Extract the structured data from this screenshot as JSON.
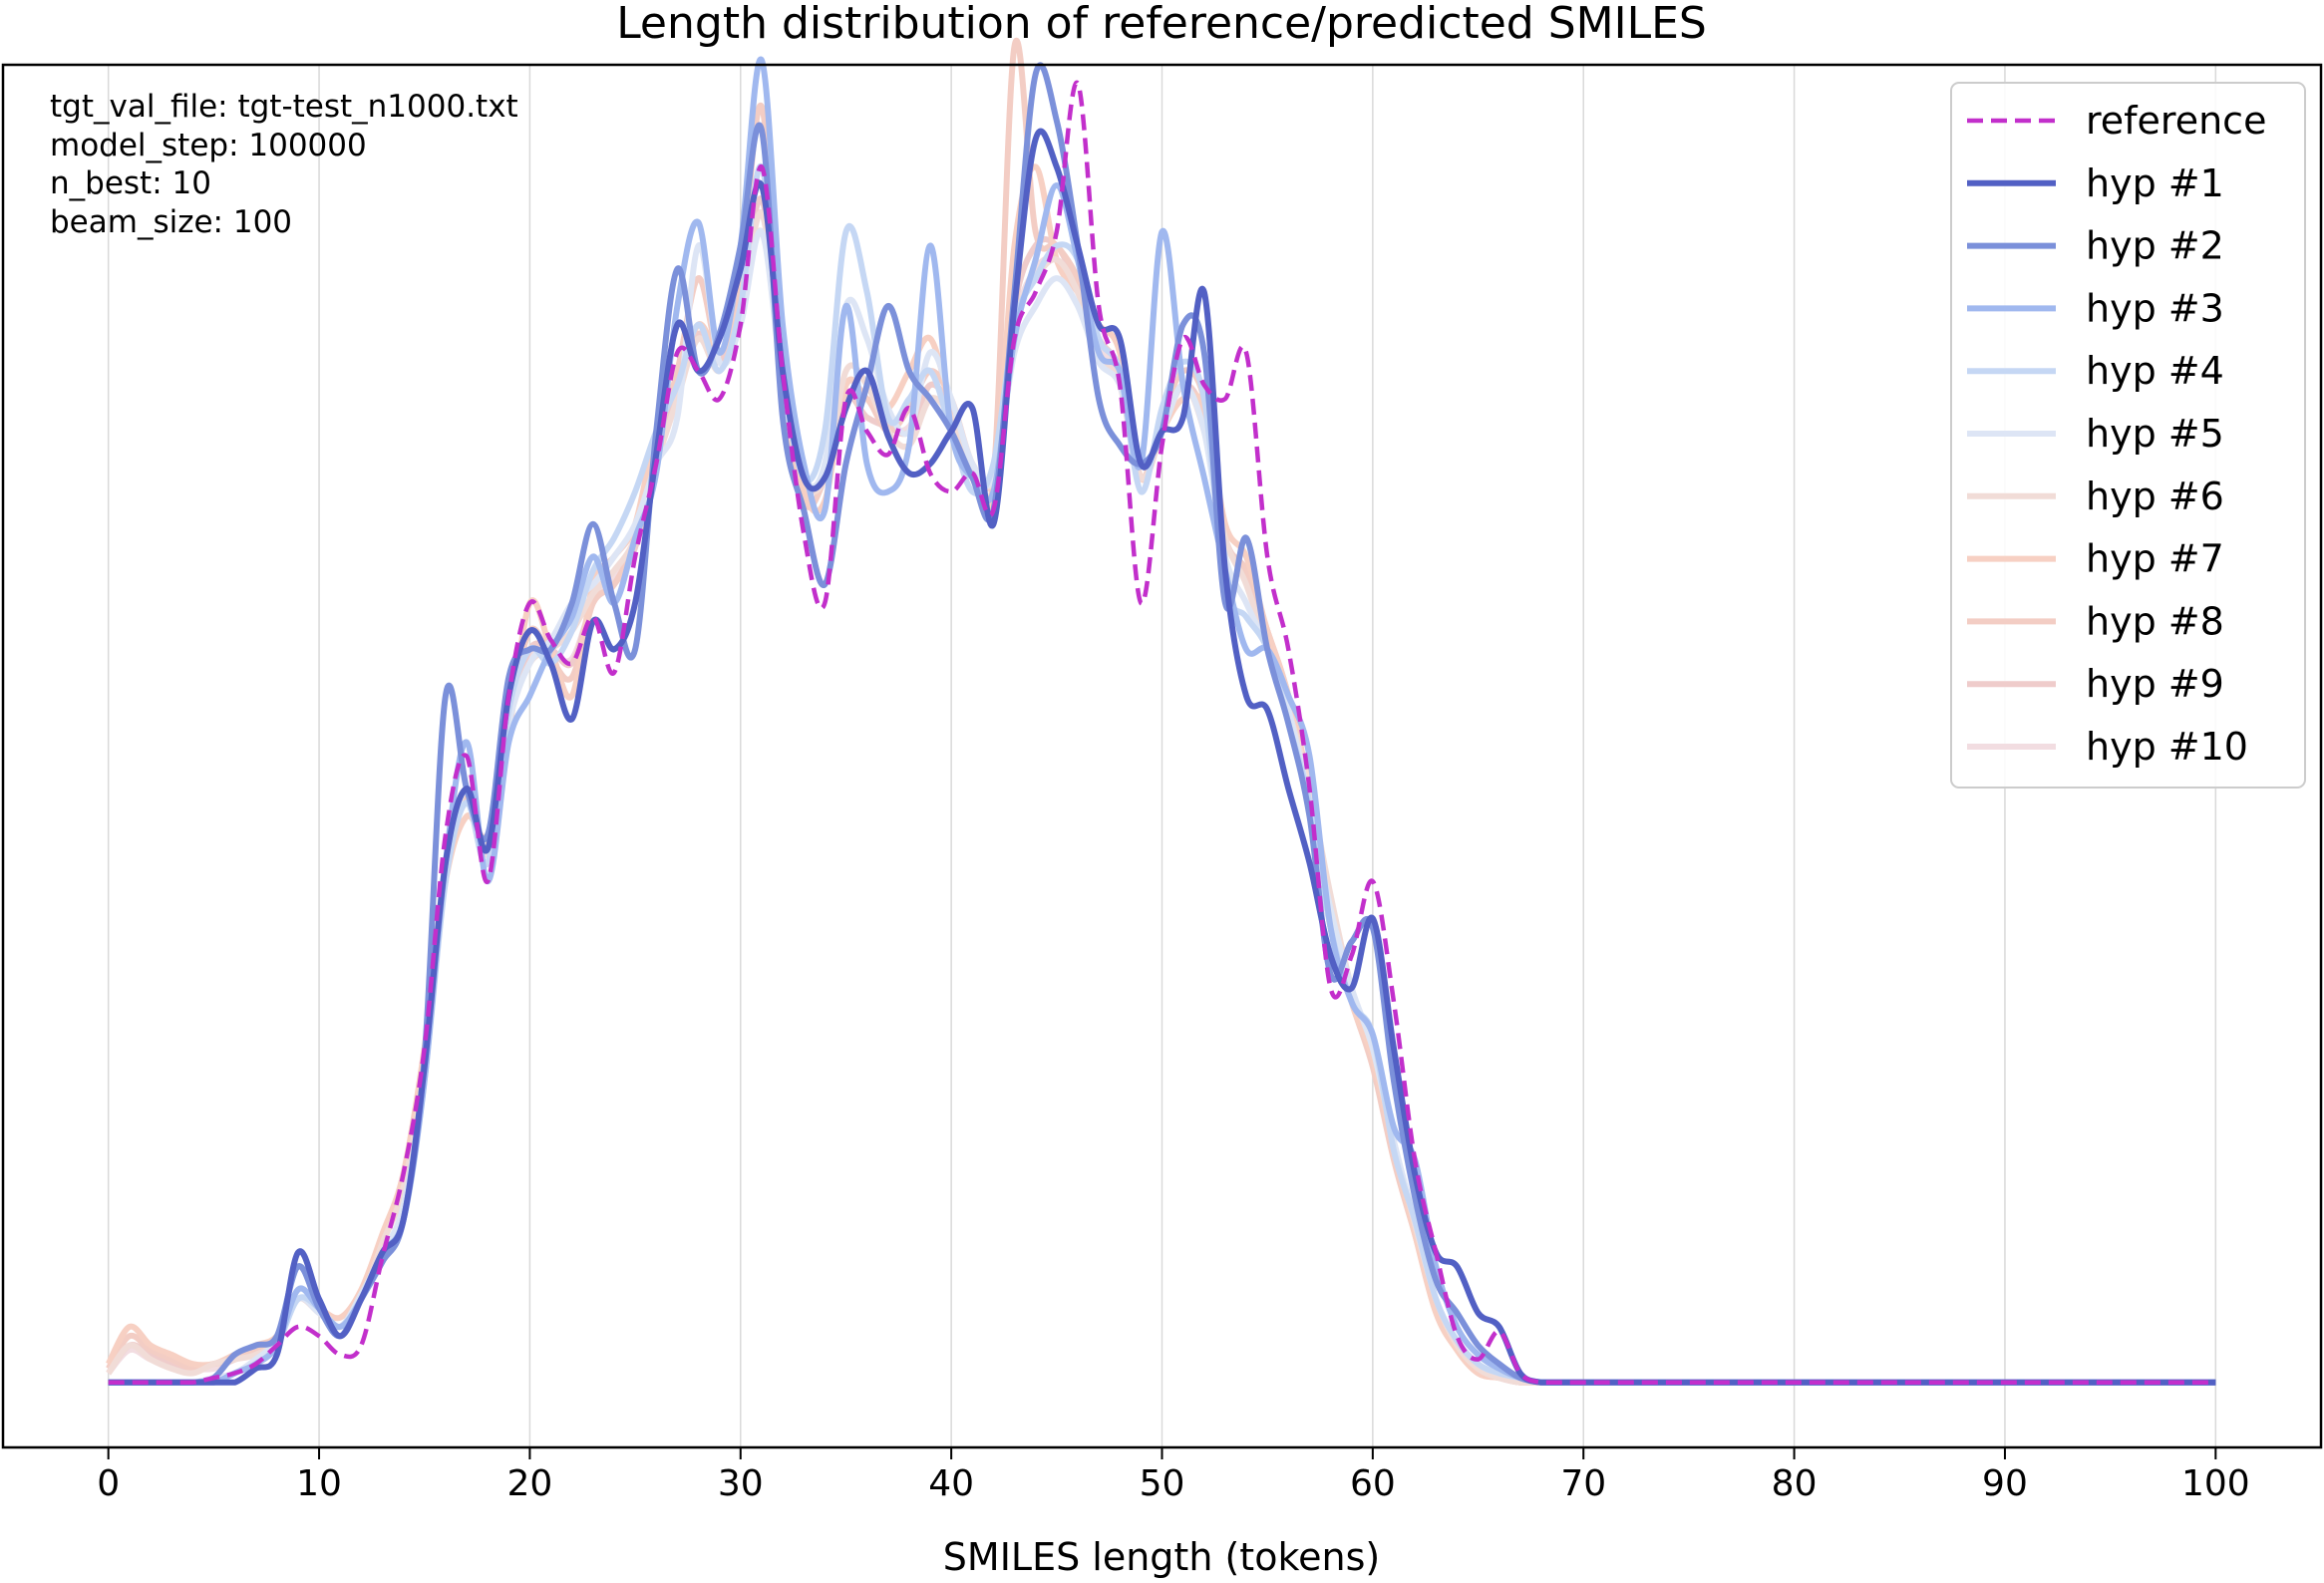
{
  "chart_data": {
    "type": "line",
    "title": "Length distribution of reference/predicted SMILES",
    "xlabel": "SMILES length (tokens)",
    "ylabel": "",
    "xlim": [
      -5,
      105
    ],
    "ylim": [
      -0.0014,
      0.0284
    ],
    "x_ticks": [
      0,
      10,
      20,
      30,
      40,
      50,
      60,
      70,
      80,
      90,
      100
    ],
    "y_ticks_visible": false,
    "grid": "vertical",
    "legend_position": "top-right",
    "info_lines": [
      "tgt_val_file: tgt-test_n1000.txt",
      "model_step: 100000",
      "n_best: 10",
      "beam_size: 100"
    ],
    "x": [
      0,
      1,
      2,
      3,
      4,
      5,
      6,
      7,
      8,
      9,
      10,
      11,
      12,
      13,
      14,
      15,
      16,
      17,
      18,
      19,
      20,
      21,
      22,
      23,
      24,
      25,
      26,
      27,
      28,
      29,
      30,
      31,
      32,
      33,
      34,
      35,
      36,
      37,
      38,
      39,
      40,
      41,
      42,
      43,
      44,
      45,
      46,
      47,
      48,
      49,
      50,
      51,
      52,
      53,
      54,
      55,
      56,
      57,
      58,
      59,
      60,
      61,
      62,
      63,
      64,
      65,
      66,
      67,
      68,
      69,
      70,
      75,
      80,
      85,
      90,
      95,
      100
    ],
    "series": [
      {
        "name": "reference",
        "color": "#c22fcb",
        "style": "dashed",
        "width": 4.5,
        "values": [
          0,
          0,
          0,
          0,
          0,
          0.0001,
          0.0002,
          0.0004,
          0.0008,
          0.0012,
          0.001,
          0.0006,
          0.0008,
          0.0027,
          0.0045,
          0.0072,
          0.0118,
          0.0135,
          0.0108,
          0.0148,
          0.0168,
          0.016,
          0.0155,
          0.0165,
          0.0153,
          0.0178,
          0.0198,
          0.0222,
          0.0218,
          0.0212,
          0.0228,
          0.0262,
          0.0218,
          0.0183,
          0.0168,
          0.0212,
          0.0205,
          0.02,
          0.021,
          0.0196,
          0.0192,
          0.0196,
          0.0188,
          0.0225,
          0.0235,
          0.0248,
          0.028,
          0.0232,
          0.0215,
          0.0168,
          0.0202,
          0.0225,
          0.0215,
          0.0212,
          0.0222,
          0.0178,
          0.0158,
          0.0128,
          0.0085,
          0.0092,
          0.0108,
          0.0082,
          0.0048,
          0.0028,
          0.001,
          0.0005,
          0.0011,
          0.0002,
          0,
          0,
          0,
          0,
          0,
          0,
          0,
          0,
          0
        ]
      },
      {
        "name": "hyp #1",
        "color": "#5260c4",
        "style": "solid",
        "width": 6,
        "values": [
          0,
          0,
          0,
          0,
          0,
          0,
          0,
          0.0003,
          0.0006,
          0.0028,
          0.0018,
          0.001,
          0.0018,
          0.0028,
          0.0035,
          0.0068,
          0.0112,
          0.0128,
          0.0115,
          0.0148,
          0.0162,
          0.0155,
          0.0143,
          0.0164,
          0.0158,
          0.0168,
          0.02,
          0.0228,
          0.0218,
          0.0225,
          0.024,
          0.0258,
          0.0218,
          0.0195,
          0.0195,
          0.021,
          0.0218,
          0.0204,
          0.0196,
          0.0198,
          0.0205,
          0.021,
          0.0185,
          0.0232,
          0.0268,
          0.0262,
          0.0245,
          0.0228,
          0.0225,
          0.0198,
          0.0205,
          0.0208,
          0.0235,
          0.0175,
          0.0148,
          0.0145,
          0.0128,
          0.0112,
          0.0092,
          0.0085,
          0.01,
          0.0072,
          0.0045,
          0.0028,
          0.0025,
          0.0015,
          0.0012,
          0.0002,
          0,
          0,
          0,
          0,
          0,
          0,
          0,
          0,
          0
        ]
      },
      {
        "name": "hyp #2",
        "color": "#7b90da",
        "style": "solid",
        "width": 6,
        "values": [
          0,
          0,
          0,
          0,
          0,
          0.0001,
          0.0006,
          0.0008,
          0.001,
          0.0025,
          0.0016,
          0.001,
          0.0018,
          0.0026,
          0.0035,
          0.007,
          0.0148,
          0.0128,
          0.0118,
          0.0152,
          0.0158,
          0.0158,
          0.0168,
          0.0185,
          0.0168,
          0.0158,
          0.0205,
          0.024,
          0.0218,
          0.0226,
          0.0245,
          0.027,
          0.0208,
          0.0188,
          0.0172,
          0.0198,
          0.0215,
          0.0232,
          0.0218,
          0.0212,
          0.0205,
          0.0195,
          0.0188,
          0.0235,
          0.0282,
          0.0272,
          0.0245,
          0.0212,
          0.0202,
          0.0198,
          0.0205,
          0.0228,
          0.0222,
          0.0168,
          0.0182,
          0.0158,
          0.0142,
          0.0122,
          0.0088,
          0.0095,
          0.0098,
          0.0065,
          0.004,
          0.0022,
          0.0015,
          0.0008,
          0.0004,
          0.0001,
          0,
          0,
          0,
          0,
          0,
          0,
          0,
          0,
          0
        ]
      },
      {
        "name": "hyp #3",
        "color": "#a0b8ef",
        "style": "solid",
        "width": 6,
        "values": [
          0,
          0,
          0,
          0,
          0,
          0,
          0.0002,
          0.0004,
          0.0008,
          0.002,
          0.0016,
          0.0012,
          0.0018,
          0.0028,
          0.0035,
          0.0065,
          0.0112,
          0.0138,
          0.0108,
          0.0138,
          0.0148,
          0.0158,
          0.0165,
          0.0178,
          0.0168,
          0.0182,
          0.0196,
          0.0232,
          0.025,
          0.0222,
          0.0245,
          0.0285,
          0.0228,
          0.0198,
          0.0188,
          0.0232,
          0.0198,
          0.0192,
          0.0202,
          0.0245,
          0.0205,
          0.0195,
          0.0192,
          0.0225,
          0.0242,
          0.0258,
          0.0242,
          0.0222,
          0.0218,
          0.0198,
          0.0248,
          0.0215,
          0.0195,
          0.0175,
          0.0158,
          0.0158,
          0.0148,
          0.0135,
          0.0098,
          0.0082,
          0.0075,
          0.0055,
          0.0048,
          0.0025,
          0.0012,
          0.0006,
          0.0003,
          0.0001,
          0,
          0,
          0,
          0,
          0,
          0,
          0,
          0,
          0
        ]
      },
      {
        "name": "hyp #4",
        "color": "#c5d7f4",
        "style": "solid",
        "width": 6,
        "values": [
          0,
          0,
          0,
          0,
          0,
          0,
          0.0002,
          0.0004,
          0.0008,
          0.0018,
          0.0016,
          0.0012,
          0.0018,
          0.0026,
          0.0035,
          0.0065,
          0.0108,
          0.0125,
          0.0112,
          0.0145,
          0.0158,
          0.0155,
          0.0162,
          0.0175,
          0.0182,
          0.0192,
          0.0205,
          0.0215,
          0.0228,
          0.0218,
          0.0232,
          0.0262,
          0.0218,
          0.0195,
          0.0205,
          0.0248,
          0.0235,
          0.0208,
          0.0212,
          0.0218,
          0.0205,
          0.0192,
          0.0198,
          0.0228,
          0.0238,
          0.0245,
          0.0242,
          0.0225,
          0.0218,
          0.0192,
          0.021,
          0.022,
          0.0212,
          0.0172,
          0.0165,
          0.0158,
          0.0142,
          0.0125,
          0.0098,
          0.0082,
          0.0075,
          0.005,
          0.0035,
          0.0018,
          0.0009,
          0.0004,
          0.0002,
          0.0001,
          0,
          0,
          0,
          0,
          0,
          0,
          0,
          0,
          0
        ]
      },
      {
        "name": "hyp #5",
        "color": "#dde5f5",
        "style": "solid",
        "width": 6,
        "values": [
          0,
          0,
          0,
          0,
          0,
          0.0001,
          0.0002,
          0.0005,
          0.0009,
          0.0018,
          0.0015,
          0.0012,
          0.0019,
          0.0028,
          0.0038,
          0.0066,
          0.011,
          0.0128,
          0.0115,
          0.0142,
          0.0155,
          0.016,
          0.0168,
          0.0172,
          0.0178,
          0.0185,
          0.0198,
          0.0208,
          0.0245,
          0.022,
          0.0228,
          0.0248,
          0.0215,
          0.0195,
          0.0198,
          0.0232,
          0.0225,
          0.021,
          0.0205,
          0.0222,
          0.0212,
          0.0198,
          0.0195,
          0.0222,
          0.0232,
          0.0238,
          0.0232,
          0.022,
          0.0215,
          0.0198,
          0.0205,
          0.0215,
          0.0205,
          0.0178,
          0.0168,
          0.0158,
          0.0145,
          0.0125,
          0.0102,
          0.0085,
          0.0072,
          0.0052,
          0.0035,
          0.0018,
          0.0009,
          0.0004,
          0.0002,
          0.0001,
          0,
          0,
          0,
          0,
          0,
          0,
          0,
          0,
          0
        ]
      },
      {
        "name": "hyp #6",
        "color": "#f1dcd7",
        "style": "solid",
        "width": 6,
        "values": [
          0.0002,
          0.0008,
          0.0005,
          0.0003,
          0.0002,
          0.0004,
          0.0005,
          0.0006,
          0.0009,
          0.0018,
          0.0016,
          0.0012,
          0.0018,
          0.003,
          0.0042,
          0.0068,
          0.0112,
          0.0125,
          0.0115,
          0.0142,
          0.0155,
          0.0158,
          0.0162,
          0.017,
          0.0175,
          0.0182,
          0.0198,
          0.0212,
          0.0225,
          0.0218,
          0.023,
          0.0252,
          0.022,
          0.0195,
          0.0195,
          0.0218,
          0.0215,
          0.0205,
          0.0202,
          0.0212,
          0.0208,
          0.0198,
          0.0195,
          0.0228,
          0.0238,
          0.0242,
          0.0235,
          0.0222,
          0.0215,
          0.0195,
          0.0205,
          0.0215,
          0.0205,
          0.0182,
          0.0172,
          0.0158,
          0.0145,
          0.0128,
          0.0105,
          0.0085,
          0.0072,
          0.0052,
          0.0034,
          0.0018,
          0.0008,
          0.0003,
          0.0001,
          0,
          0,
          0,
          0,
          0,
          0,
          0,
          0,
          0,
          0
        ]
      },
      {
        "name": "hyp #7",
        "color": "#f7d0c3",
        "style": "solid",
        "width": 6,
        "values": [
          0.0004,
          0.0012,
          0.0008,
          0.0006,
          0.0004,
          0.0004,
          0.0006,
          0.0008,
          0.001,
          0.0018,
          0.0016,
          0.0014,
          0.002,
          0.0032,
          0.0045,
          0.0072,
          0.0108,
          0.0122,
          0.0118,
          0.014,
          0.0168,
          0.0158,
          0.0148,
          0.0172,
          0.0178,
          0.0185,
          0.0205,
          0.0215,
          0.0228,
          0.0222,
          0.0232,
          0.0248,
          0.0218,
          0.0192,
          0.019,
          0.0215,
          0.0212,
          0.021,
          0.0218,
          0.0225,
          0.021,
          0.0195,
          0.0192,
          0.0245,
          0.0262,
          0.0242,
          0.0235,
          0.0228,
          0.0222,
          0.0195,
          0.0205,
          0.0212,
          0.021,
          0.0185,
          0.0178,
          0.0162,
          0.0148,
          0.0128,
          0.0102,
          0.0082,
          0.007,
          0.005,
          0.0032,
          0.0015,
          0.0007,
          0.0002,
          0.0001,
          0,
          0,
          0,
          0,
          0,
          0,
          0,
          0,
          0,
          0
        ]
      },
      {
        "name": "hyp #8",
        "color": "#f3cdc4",
        "style": "solid",
        "width": 6,
        "values": [
          0.0003,
          0.001,
          0.0007,
          0.0005,
          0.0003,
          0.0004,
          0.0005,
          0.0007,
          0.001,
          0.0018,
          0.0015,
          0.0012,
          0.0019,
          0.003,
          0.0044,
          0.007,
          0.011,
          0.0126,
          0.0116,
          0.0142,
          0.0162,
          0.0156,
          0.0152,
          0.0168,
          0.0172,
          0.0182,
          0.0202,
          0.0218,
          0.0238,
          0.0222,
          0.0238,
          0.0275,
          0.0218,
          0.019,
          0.0195,
          0.0212,
          0.0212,
          0.0205,
          0.021,
          0.0218,
          0.0212,
          0.0198,
          0.0195,
          0.0288,
          0.0248,
          0.0245,
          0.0238,
          0.0225,
          0.0218,
          0.0195,
          0.0208,
          0.0218,
          0.0212,
          0.0182,
          0.0175,
          0.0162,
          0.0148,
          0.0125,
          0.0098,
          0.0082,
          0.0068,
          0.0048,
          0.0032,
          0.0016,
          0.0007,
          0.0002,
          0.0001,
          0,
          0,
          0,
          0,
          0,
          0,
          0,
          0,
          0,
          0
        ]
      },
      {
        "name": "hyp #9",
        "color": "#efcccb",
        "style": "solid",
        "width": 6,
        "values": [
          0.0002,
          0.0008,
          0.0006,
          0.0004,
          0.0003,
          0.0004,
          0.0005,
          0.0007,
          0.001,
          0.0018,
          0.0016,
          0.0012,
          0.0019,
          0.003,
          0.0043,
          0.007,
          0.0112,
          0.0128,
          0.0115,
          0.0142,
          0.0158,
          0.0158,
          0.0155,
          0.0168,
          0.0172,
          0.018,
          0.0198,
          0.0215,
          0.0226,
          0.022,
          0.0232,
          0.0255,
          0.0218,
          0.0195,
          0.0195,
          0.0212,
          0.0208,
          0.0206,
          0.0205,
          0.0215,
          0.021,
          0.0198,
          0.0195,
          0.0232,
          0.0245,
          0.0245,
          0.0236,
          0.0225,
          0.0218,
          0.0195,
          0.0205,
          0.0215,
          0.0208,
          0.0182,
          0.0175,
          0.0162,
          0.0148,
          0.0128,
          0.0102,
          0.0084,
          0.0071,
          0.005,
          0.0033,
          0.0017,
          0.0008,
          0.0003,
          0.0001,
          0,
          0,
          0,
          0,
          0,
          0,
          0,
          0,
          0,
          0
        ]
      },
      {
        "name": "hyp #10",
        "color": "#f2dde1",
        "style": "solid",
        "width": 6,
        "values": [
          0.0002,
          0.0007,
          0.0005,
          0.0004,
          0.0003,
          0.0003,
          0.0005,
          0.0007,
          0.001,
          0.0018,
          0.0015,
          0.0012,
          0.0019,
          0.003,
          0.0042,
          0.0068,
          0.011,
          0.0126,
          0.0114,
          0.0142,
          0.0156,
          0.0157,
          0.0156,
          0.0168,
          0.0174,
          0.0182,
          0.0198,
          0.0212,
          0.0226,
          0.022,
          0.0232,
          0.0252,
          0.0218,
          0.0195,
          0.0195,
          0.0215,
          0.0212,
          0.0206,
          0.0206,
          0.0215,
          0.021,
          0.0198,
          0.0195,
          0.0228,
          0.024,
          0.0242,
          0.0235,
          0.0224,
          0.0216,
          0.0195,
          0.0206,
          0.0215,
          0.0206,
          0.0182,
          0.0174,
          0.016,
          0.0146,
          0.0126,
          0.0102,
          0.0084,
          0.0071,
          0.005,
          0.0033,
          0.0017,
          0.0008,
          0.0003,
          0.0001,
          0,
          0,
          0,
          0,
          0,
          0,
          0,
          0,
          0,
          0
        ]
      }
    ]
  }
}
